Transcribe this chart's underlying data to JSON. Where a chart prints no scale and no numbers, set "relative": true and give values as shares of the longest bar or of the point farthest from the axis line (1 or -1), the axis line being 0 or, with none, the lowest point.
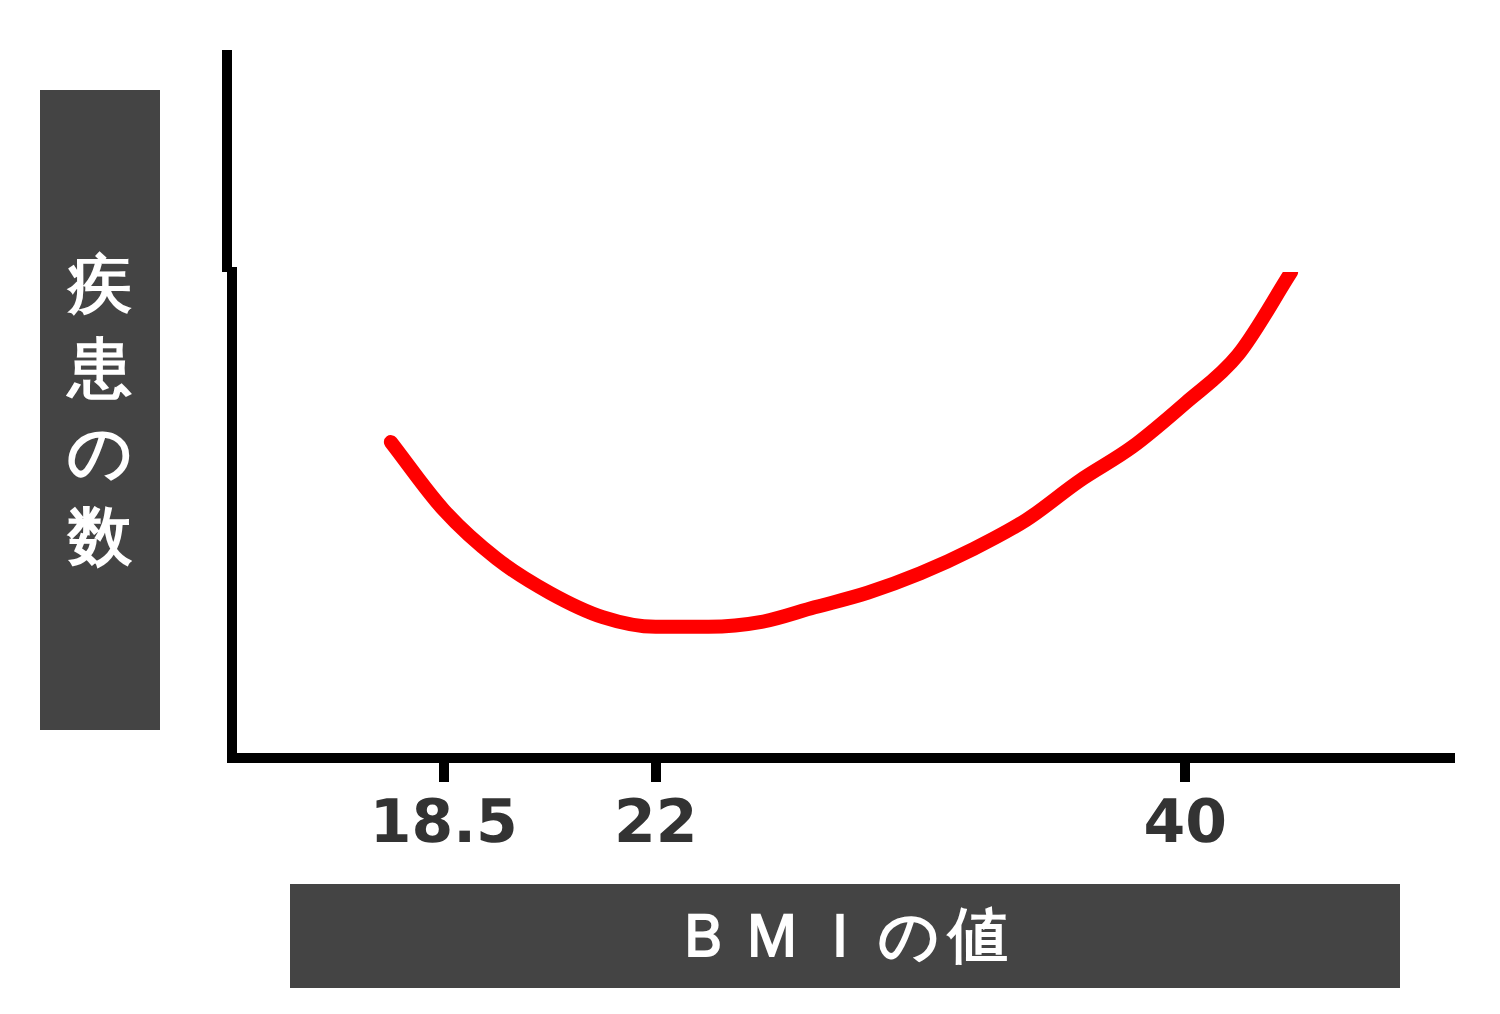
{
  "chart_data": {
    "type": "line",
    "xlabel": "ＢＭＩの値",
    "ylabel": "疾患の数",
    "relative": true,
    "grid": false,
    "legend": false,
    "marker": "none",
    "categories": [
      null,
      null,
      null,
      null,
      "18.5",
      null,
      null,
      null,
      "22",
      null,
      null,
      null,
      null,
      null,
      null,
      null,
      null,
      null,
      "40",
      null,
      null,
      null,
      null,
      null
    ],
    "series": [
      {
        "color": "#ff0000",
        "values": [
          null,
          null,
          null,
          0.65,
          0.51,
          0.41,
          0.34,
          0.29,
          0.27,
          0.27,
          0.28,
          0.31,
          0.34,
          0.38,
          0.43,
          0.49,
          0.57,
          0.64,
          0.73,
          0.83,
          1.0,
          null,
          null,
          null
        ]
      }
    ]
  }
}
